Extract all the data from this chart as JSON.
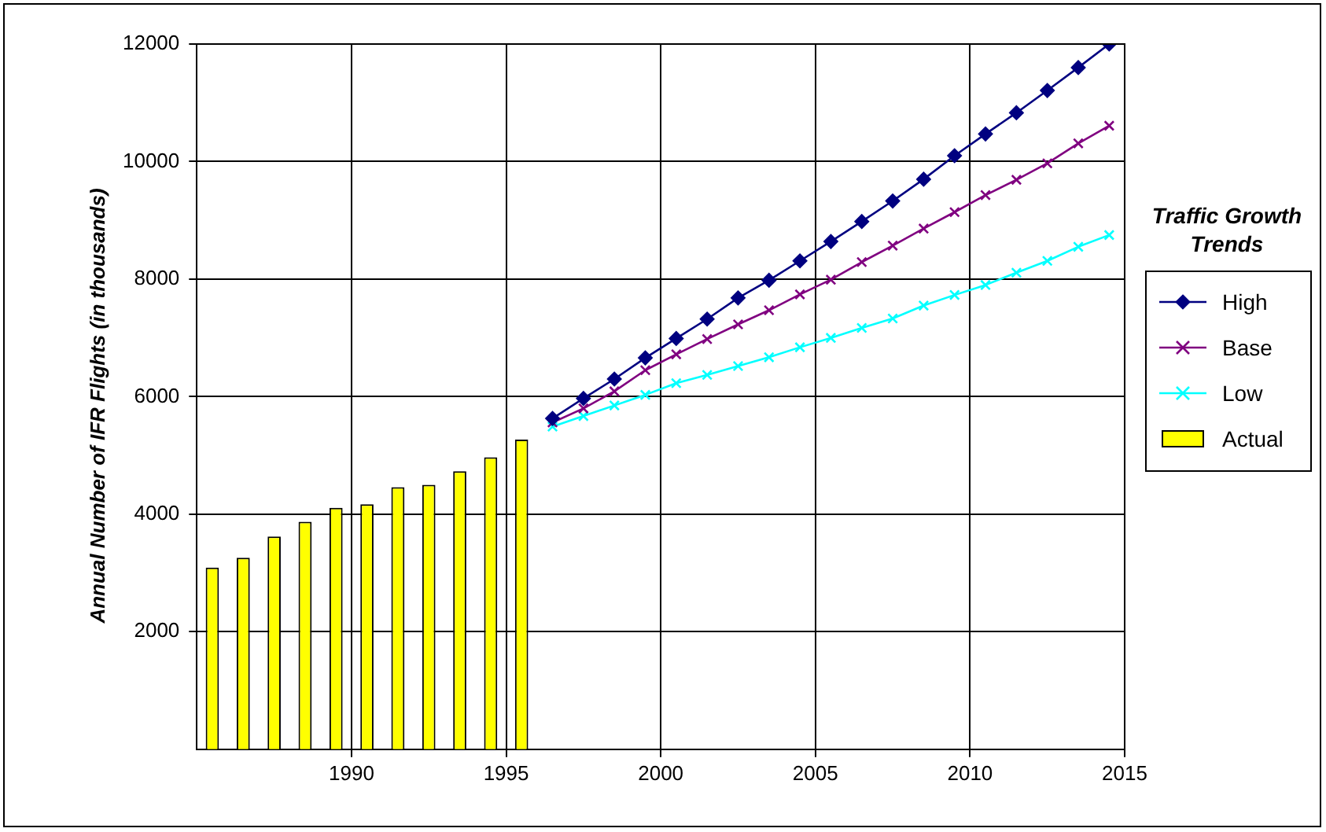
{
  "chart_data": {
    "type": "line",
    "ylabel": "Annual Number of IFR Flights (in thousands)",
    "legend_title": "Traffic Growth Trends",
    "legend": "right",
    "grid": true,
    "xlim": [
      1985,
      2015
    ],
    "xticks": [
      1990,
      1995,
      2000,
      2005,
      2010,
      2015
    ],
    "ylim": [
      0,
      12000
    ],
    "yticks": [
      2000,
      4000,
      6000,
      8000,
      10000,
      12000
    ],
    "series": [
      {
        "name": "High",
        "color": "#000080",
        "marker": "diamond",
        "x": [
          1996.5,
          1997.5,
          1998.5,
          1999.5,
          2000.5,
          2001.5,
          2002.5,
          2003.5,
          2004.5,
          2005.5,
          2006.5,
          2007.5,
          2008.5,
          2009.5,
          2010.5,
          2011.5,
          2012.5,
          2013.5,
          2014.5
        ],
        "values": [
          5630,
          5970,
          6300,
          6660,
          6990,
          7320,
          7680,
          7980,
          8310,
          8640,
          8980,
          9330,
          9700,
          10100,
          10470,
          10830,
          11210,
          11600,
          12000
        ]
      },
      {
        "name": "Base",
        "color": "#800080",
        "marker": "cross",
        "x": [
          1996.5,
          1997.5,
          1998.5,
          1999.5,
          2000.5,
          2001.5,
          2002.5,
          2003.5,
          2004.5,
          2005.5,
          2006.5,
          2007.5,
          2008.5,
          2009.5,
          2010.5,
          2011.5,
          2012.5,
          2013.5,
          2014.5
        ],
        "values": [
          5560,
          5800,
          6090,
          6450,
          6720,
          6980,
          7230,
          7470,
          7740,
          7990,
          8290,
          8570,
          8860,
          9140,
          9430,
          9690,
          9970,
          10310,
          10610
        ]
      },
      {
        "name": "Low",
        "color": "#00ffff",
        "marker": "cross",
        "x": [
          1996.5,
          1997.5,
          1998.5,
          1999.5,
          2000.5,
          2001.5,
          2002.5,
          2003.5,
          2004.5,
          2005.5,
          2006.5,
          2007.5,
          2008.5,
          2009.5,
          2010.5,
          2011.5,
          2012.5,
          2013.5,
          2014.5
        ],
        "values": [
          5490,
          5670,
          5850,
          6030,
          6230,
          6370,
          6520,
          6670,
          6840,
          7000,
          7170,
          7330,
          7550,
          7730,
          7900,
          8110,
          8310,
          8550,
          8750
        ]
      },
      {
        "name": "Actual",
        "type": "bar",
        "color": "#ffff00",
        "x": [
          1985.5,
          1986.5,
          1987.5,
          1988.5,
          1989.5,
          1990.5,
          1991.5,
          1992.5,
          1993.5,
          1994.5,
          1995.5
        ],
        "values": [
          3090,
          3260,
          3620,
          3870,
          4110,
          4170,
          4460,
          4500,
          4730,
          4970,
          5270
        ]
      }
    ]
  }
}
